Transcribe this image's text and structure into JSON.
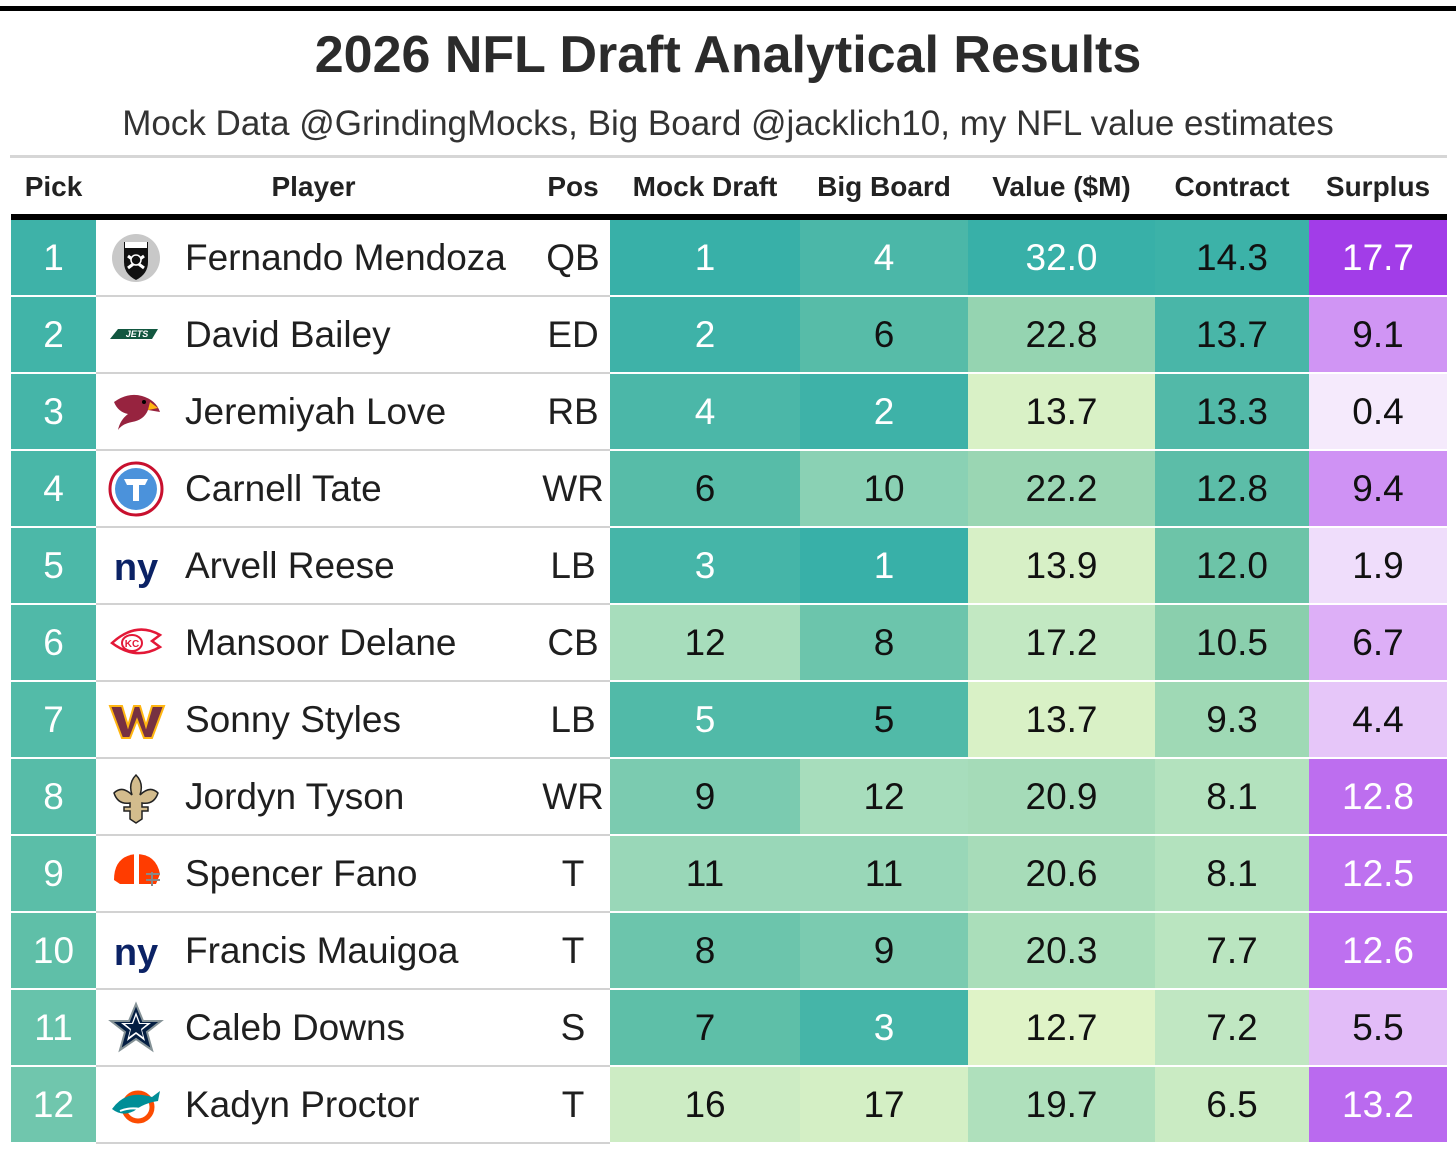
{
  "title": "2026 NFL Draft Analytical Results",
  "subtitle": "Mock Data @GrindingMocks, Big Board @jacklich10, my NFL value estimates",
  "colors": {
    "teal_dark": "#38B0A8",
    "teal_light": "#B8E4C0",
    "lime_light": "#E4F5C8",
    "purple_dark": "#A23DE8",
    "purple_light": "#F6EEFC"
  },
  "chart_data": {
    "type": "table",
    "title": "2026 NFL Draft Analytical Results",
    "subtitle": "Mock Data @GrindingMocks, Big Board @jacklich10, my NFL value estimates",
    "columns": [
      "Pick",
      "Player",
      "Pos",
      "Mock Draft",
      "Big Board",
      "Value ($M)",
      "Contract",
      "Surplus"
    ],
    "rows": [
      {
        "pick": "1",
        "team_icon": "raiders-logo-icon",
        "player": "Fernando Mendoza",
        "pos": "QB",
        "mock": "1",
        "board": "4",
        "value": "32.0",
        "contract": "14.3",
        "surplus": "17.7"
      },
      {
        "pick": "2",
        "team_icon": "jets-logo-icon",
        "player": "David Bailey",
        "pos": "ED",
        "mock": "2",
        "board": "6",
        "value": "22.8",
        "contract": "13.7",
        "surplus": "9.1"
      },
      {
        "pick": "3",
        "team_icon": "cardinals-logo-icon",
        "player": "Jeremiyah Love",
        "pos": "RB",
        "mock": "4",
        "board": "2",
        "value": "13.7",
        "contract": "13.3",
        "surplus": "0.4"
      },
      {
        "pick": "4",
        "team_icon": "titans-logo-icon",
        "player": "Carnell Tate",
        "pos": "WR",
        "mock": "6",
        "board": "10",
        "value": "22.2",
        "contract": "12.8",
        "surplus": "9.4"
      },
      {
        "pick": "5",
        "team_icon": "giants-logo-icon",
        "player": "Arvell Reese",
        "pos": "LB",
        "mock": "3",
        "board": "1",
        "value": "13.9",
        "contract": "12.0",
        "surplus": "1.9"
      },
      {
        "pick": "6",
        "team_icon": "chiefs-logo-icon",
        "player": "Mansoor Delane",
        "pos": "CB",
        "mock": "12",
        "board": "8",
        "value": "17.2",
        "contract": "10.5",
        "surplus": "6.7"
      },
      {
        "pick": "7",
        "team_icon": "commanders-logo-icon",
        "player": "Sonny Styles",
        "pos": "LB",
        "mock": "5",
        "board": "5",
        "value": "13.7",
        "contract": "9.3",
        "surplus": "4.4"
      },
      {
        "pick": "8",
        "team_icon": "saints-logo-icon",
        "player": "Jordyn Tyson",
        "pos": "WR",
        "mock": "9",
        "board": "12",
        "value": "20.9",
        "contract": "8.1",
        "surplus": "12.8"
      },
      {
        "pick": "9",
        "team_icon": "browns-logo-icon",
        "player": "Spencer Fano",
        "pos": "T",
        "mock": "11",
        "board": "11",
        "value": "20.6",
        "contract": "8.1",
        "surplus": "12.5"
      },
      {
        "pick": "10",
        "team_icon": "giants-logo-icon",
        "player": "Francis Mauigoa",
        "pos": "T",
        "mock": "8",
        "board": "9",
        "value": "20.3",
        "contract": "7.7",
        "surplus": "12.6"
      },
      {
        "pick": "11",
        "team_icon": "cowboys-logo-icon",
        "player": "Caleb Downs",
        "pos": "S",
        "mock": "7",
        "board": "3",
        "value": "12.7",
        "contract": "7.2",
        "surplus": "5.5"
      },
      {
        "pick": "12",
        "team_icon": "dolphins-logo-icon",
        "player": "Kadyn Proctor",
        "pos": "T",
        "mock": "16",
        "board": "17",
        "value": "19.7",
        "contract": "6.5",
        "surplus": "13.2"
      }
    ]
  }
}
